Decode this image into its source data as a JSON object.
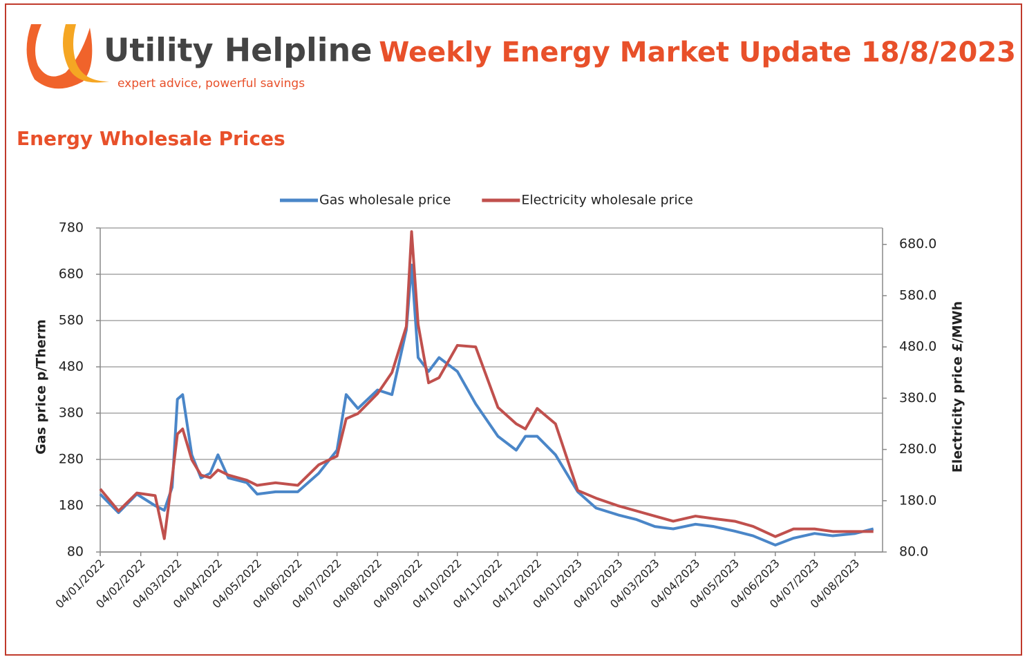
{
  "header": {
    "brand": "Utility Helpline",
    "tagline": "expert advice, powerful savings",
    "title": "Weekly Energy Market Update 18/8/2023"
  },
  "section_title": "Energy Wholesale Prices",
  "chart_data": {
    "type": "line",
    "ylabel": "Gas price p/Therm",
    "y2label": "Electricity price £/MWh",
    "x": [
      "04/01/2022",
      "18/01/2022",
      "01/02/2022",
      "15/02/2022",
      "22/02/2022",
      "28/02/2022",
      "04/03/2022",
      "08/03/2022",
      "15/03/2022",
      "22/03/2022",
      "29/03/2022",
      "04/04/2022",
      "12/04/2022",
      "26/04/2022",
      "04/05/2022",
      "18/05/2022",
      "04/06/2022",
      "20/06/2022",
      "04/07/2022",
      "11/07/2022",
      "20/07/2022",
      "04/08/2022",
      "15/08/2022",
      "26/08/2022",
      "30/08/2022",
      "04/09/2022",
      "12/09/2022",
      "20/09/2022",
      "04/10/2022",
      "18/10/2022",
      "04/11/2022",
      "18/11/2022",
      "25/11/2022",
      "04/12/2022",
      "18/12/2022",
      "04/01/2023",
      "18/01/2023",
      "04/02/2023",
      "18/02/2023",
      "04/03/2023",
      "18/03/2023",
      "04/04/2023",
      "18/04/2023",
      "04/05/2023",
      "18/05/2023",
      "04/06/2023",
      "18/06/2023",
      "04/07/2023",
      "18/07/2023",
      "04/08/2023",
      "18/08/2023"
    ],
    "series": [
      {
        "name": "Gas wholesale price",
        "color": "#4a86c8",
        "axis": "y",
        "values": [
          205,
          165,
          205,
          180,
          170,
          220,
          410,
          420,
          290,
          240,
          250,
          290,
          240,
          230,
          205,
          210,
          210,
          250,
          300,
          420,
          390,
          430,
          420,
          560,
          700,
          500,
          470,
          500,
          470,
          400,
          330,
          300,
          330,
          330,
          290,
          210,
          175,
          160,
          150,
          135,
          130,
          140,
          135,
          125,
          115,
          95,
          110,
          120,
          115,
          120,
          130
        ]
      },
      {
        "name": "Electricity wholesale price",
        "color": "#c0504d",
        "axis": "y2",
        "values": [
          203,
          160,
          195,
          190,
          106,
          225,
          310,
          320,
          260,
          230,
          225,
          240,
          230,
          220,
          210,
          215,
          210,
          250,
          267,
          340,
          350,
          389,
          430,
          520,
          705,
          524,
          410,
          420,
          483,
          480,
          362,
          330,
          320,
          360,
          330,
          200,
          185,
          170,
          160,
          150,
          140,
          150,
          145,
          140,
          130,
          110,
          125,
          125,
          120,
          120,
          120
        ]
      }
    ],
    "xlim": [
      "04/01/2022",
      "25/08/2023"
    ],
    "xticks": [
      "04/01/2022",
      "04/02/2022",
      "04/03/2022",
      "04/04/2022",
      "04/05/2022",
      "04/06/2022",
      "04/07/2022",
      "04/08/2022",
      "04/09/2022",
      "04/10/2022",
      "04/11/2022",
      "04/12/2022",
      "04/01/2023",
      "04/02/2023",
      "04/03/2023",
      "04/04/2023",
      "04/05/2023",
      "04/06/2023",
      "04/07/2023",
      "04/08/2023"
    ],
    "ylim": [
      80,
      780
    ],
    "yticks": [
      80,
      180,
      280,
      380,
      480,
      580,
      680,
      780
    ],
    "y2lim": [
      80,
      712
    ],
    "y2ticks": [
      {
        "value": 80,
        "label": "80.0"
      },
      {
        "value": 180,
        "label": "180.0"
      },
      {
        "value": 280,
        "label": "280.0"
      },
      {
        "value": 380,
        "label": "380.0"
      },
      {
        "value": 480,
        "label": "480.0"
      },
      {
        "value": 580,
        "label": "580.0"
      },
      {
        "value": 680,
        "label": "680.0"
      }
    ],
    "grid": true,
    "legend": "top"
  }
}
